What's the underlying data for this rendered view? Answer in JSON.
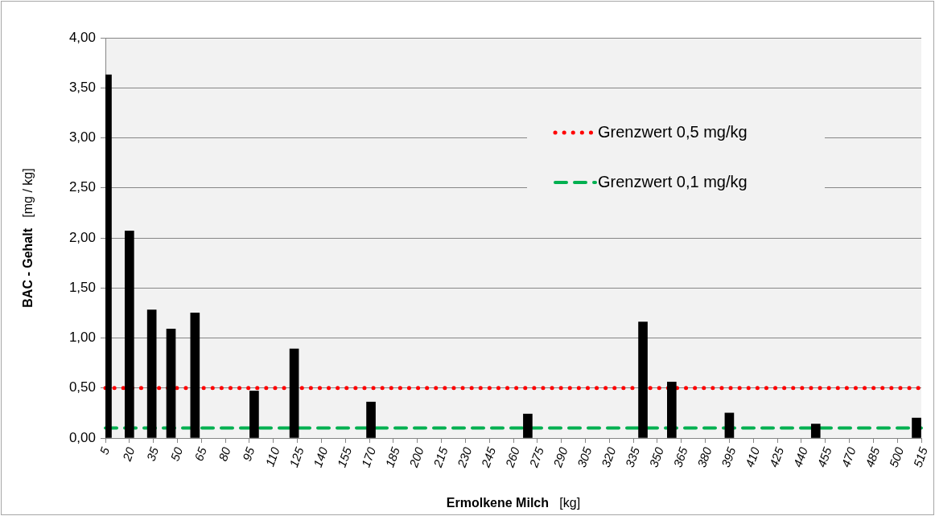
{
  "chart_data": {
    "type": "bar",
    "xlabel": "Ermolkene Milch   [kg]",
    "ylabel": "BAC - Gehalt   [mg / kg]",
    "x": [
      6,
      20,
      34,
      46,
      61,
      98,
      123,
      171,
      269,
      341,
      359,
      395,
      449,
      512
    ],
    "series": [
      {
        "color": "#000000",
        "values": [
          3.63,
          2.07,
          1.28,
          1.09,
          1.25,
          0.47,
          0.89,
          0.36,
          0.24,
          1.16,
          0.56,
          0.25,
          0.14,
          0.2
        ]
      }
    ],
    "xlim": [
      5,
      515
    ],
    "xticks": [
      5,
      20,
      35,
      50,
      65,
      80,
      95,
      110,
      125,
      140,
      155,
      170,
      185,
      200,
      215,
      230,
      245,
      260,
      275,
      290,
      305,
      320,
      335,
      350,
      365,
      380,
      395,
      410,
      425,
      440,
      455,
      470,
      485,
      500,
      515
    ],
    "ylim": [
      0,
      4
    ],
    "yticks": [
      {
        "value": 0,
        "label": "0,00"
      },
      {
        "value": 0.5,
        "label": "0,50"
      },
      {
        "value": 1,
        "label": "1,00"
      },
      {
        "value": 1.5,
        "label": "1,50"
      },
      {
        "value": 2,
        "label": "2,00"
      },
      {
        "value": 2.5,
        "label": "2,50"
      },
      {
        "value": 3,
        "label": "3,00"
      },
      {
        "value": 3.5,
        "label": "3,50"
      },
      {
        "value": 4,
        "label": "4,00"
      }
    ],
    "ref_lines": [
      {
        "axis": "y",
        "value": 0.5,
        "label": "Grenzwert 0,5 mg/kg",
        "color": "#ff0000",
        "line_style": "dotted"
      },
      {
        "axis": "y",
        "value": 0.1,
        "label": "Grenzwert 0,1 mg/kg",
        "color": "#00b050",
        "line_style": "dashed"
      }
    ],
    "grid": "y",
    "legend": "top right"
  }
}
